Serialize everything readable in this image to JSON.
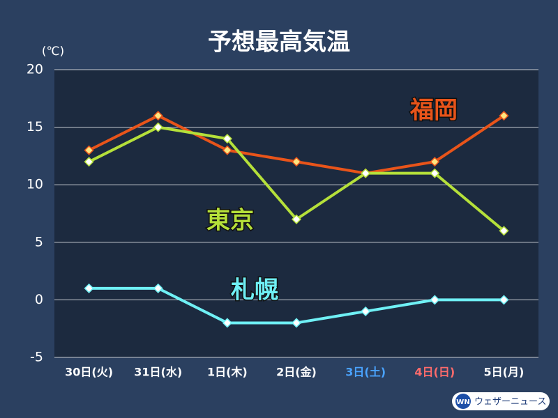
{
  "chart_data": {
    "type": "line",
    "title": "予想最高気温",
    "y_axis_label": "(℃)",
    "categories": [
      "30日(火)",
      "31日(水)",
      "1日(木)",
      "2日(金)",
      "3日(土)",
      "4日(日)",
      "5日(月)"
    ],
    "category_colors": [
      "#ffffff",
      "#ffffff",
      "#ffffff",
      "#ffffff",
      "#4aa3ff",
      "#ff6b6b",
      "#ffffff"
    ],
    "series": [
      {
        "name": "福岡",
        "color": "#e8541a",
        "values": [
          13,
          16,
          13,
          12,
          11,
          12,
          16
        ]
      },
      {
        "name": "東京",
        "color": "#b5e03a",
        "values": [
          12,
          15,
          14,
          7,
          11,
          11,
          6
        ]
      },
      {
        "name": "札幌",
        "color": "#6ff0f5",
        "values": [
          1,
          1,
          -2,
          -2,
          -1,
          0,
          0
        ]
      }
    ],
    "ylim": [
      -5,
      20
    ],
    "yticks": [
      -5,
      0,
      5,
      10,
      15,
      20
    ],
    "grid": true
  },
  "logo": {
    "mark": "WN",
    "text": "ウェザーニュース"
  }
}
